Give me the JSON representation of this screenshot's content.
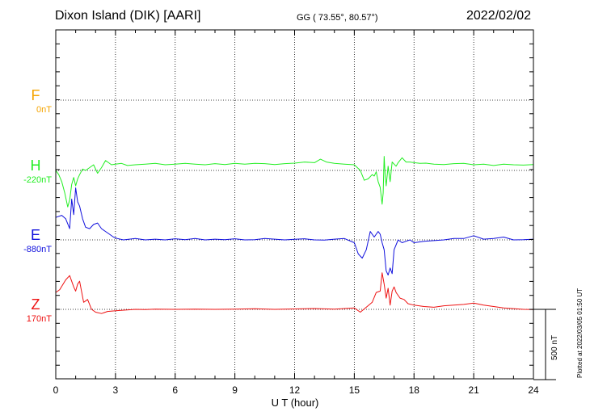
{
  "header": {
    "station": "Dixon Island (DIK)  [AARI]",
    "coordinates": "GG ( 73.55°,  80.57°)",
    "date": "2022/02/02"
  },
  "plotted_note": "Plotted at 2022/03/05 01:50 UT",
  "scale_bar_label": "500 nT",
  "chart_data": {
    "type": "line",
    "xlabel": "U T (hour)",
    "xlim": [
      0,
      24
    ],
    "xticks": [
      0,
      3,
      6,
      9,
      12,
      15,
      18,
      21,
      24
    ],
    "grid": true,
    "scale_bar_nT": 500,
    "series": [
      {
        "name": "F",
        "baseline_label": "0nT",
        "color": "#f5a400",
        "baseline_nT": 0,
        "x": [],
        "y": []
      },
      {
        "name": "H",
        "baseline_label": "-220nT",
        "color": "#22ee22",
        "baseline_nT": -220,
        "x": [
          0,
          0.15,
          0.3,
          0.45,
          0.6,
          0.7,
          0.8,
          0.9,
          1.0,
          1.1,
          1.2,
          1.35,
          1.5,
          1.7,
          1.9,
          2.1,
          2.3,
          2.5,
          2.65,
          2.8,
          3.0,
          3.3,
          3.6,
          4.0,
          4.5,
          5.0,
          5.5,
          6.0,
          6.5,
          7.0,
          7.5,
          8.0,
          8.5,
          9.0,
          9.5,
          10.0,
          10.5,
          11.0,
          11.5,
          12.0,
          12.5,
          13.0,
          13.3,
          13.6,
          14.0,
          14.5,
          15.0,
          15.3,
          15.5,
          15.7,
          15.9,
          16.0,
          16.1,
          16.2,
          16.3,
          16.4,
          16.45,
          16.5,
          16.55,
          16.6,
          16.7,
          16.8,
          16.9,
          17.0,
          17.1,
          17.2,
          17.4,
          17.6,
          17.8,
          18.0,
          18.3,
          18.6,
          19.0,
          19.5,
          20.0,
          20.5,
          21.0,
          21.5,
          22.0,
          22.5,
          23.0,
          23.5,
          24.0
        ],
        "y": [
          -220,
          -250,
          -300,
          -380,
          -480,
          -430,
          -320,
          -270,
          -330,
          -280,
          -250,
          -210,
          -220,
          -200,
          -180,
          -240,
          -200,
          -150,
          -165,
          -180,
          -175,
          -170,
          -185,
          -180,
          -175,
          -170,
          -180,
          -175,
          -170,
          -175,
          -180,
          -172,
          -178,
          -170,
          -175,
          -170,
          -172,
          -178,
          -172,
          -168,
          -160,
          -165,
          -140,
          -160,
          -170,
          -175,
          -180,
          -220,
          -290,
          -280,
          -250,
          -260,
          -230,
          -300,
          -340,
          -460,
          -380,
          -120,
          -250,
          -330,
          -190,
          -300,
          -160,
          -175,
          -190,
          -165,
          -130,
          -160,
          -160,
          -165,
          -170,
          -168,
          -175,
          -178,
          -172,
          -170,
          -180,
          -175,
          -185,
          -175,
          -180,
          -182,
          -178
        ]
      },
      {
        "name": "E",
        "baseline_label": "-880nT",
        "color": "#1010dd",
        "baseline_nT": -880,
        "x": [
          0,
          0.3,
          0.5,
          0.7,
          0.8,
          0.9,
          1.0,
          1.1,
          1.2,
          1.35,
          1.5,
          1.7,
          1.9,
          2.1,
          2.3,
          2.5,
          2.7,
          2.9,
          3.1,
          3.4,
          3.7,
          4.0,
          4.5,
          5.0,
          5.5,
          6.0,
          6.5,
          7.0,
          7.5,
          8.0,
          8.5,
          9.0,
          9.5,
          10.0,
          10.5,
          11.0,
          11.5,
          12.0,
          12.5,
          13.0,
          13.5,
          14.0,
          14.5,
          15.0,
          15.2,
          15.4,
          15.6,
          15.8,
          16.0,
          16.2,
          16.3,
          16.4,
          16.5,
          16.6,
          16.7,
          16.8,
          16.9,
          17.0,
          17.2,
          17.4,
          17.6,
          17.8,
          18.0,
          18.5,
          19.0,
          19.5,
          20.0,
          20.5,
          21.0,
          21.5,
          22.0,
          22.5,
          23.0,
          23.5,
          24.0
        ],
        "y": [
          -720,
          -705,
          -730,
          -800,
          -590,
          -700,
          -510,
          -610,
          -640,
          -730,
          -790,
          -800,
          -770,
          -760,
          -800,
          -820,
          -840,
          -860,
          -870,
          -880,
          -875,
          -870,
          -880,
          -875,
          -880,
          -872,
          -878,
          -870,
          -880,
          -875,
          -878,
          -872,
          -880,
          -878,
          -870,
          -875,
          -880,
          -876,
          -872,
          -880,
          -882,
          -875,
          -870,
          -900,
          -980,
          -1010,
          -950,
          -820,
          -860,
          -820,
          -840,
          -900,
          -950,
          -1100,
          -1130,
          -1080,
          -1120,
          -950,
          -880,
          -900,
          -890,
          -880,
          -900,
          -890,
          -885,
          -880,
          -870,
          -870,
          -850,
          -875,
          -870,
          -860,
          -880,
          -878,
          -875
        ]
      },
      {
        "name": "Z",
        "baseline_label": "170nT",
        "color": "#ee1111",
        "baseline_nT": 170,
        "x": [
          0,
          0.2,
          0.5,
          0.7,
          0.9,
          1.0,
          1.1,
          1.2,
          1.4,
          1.6,
          1.8,
          2.0,
          2.3,
          2.6,
          3.0,
          3.5,
          4.0,
          4.5,
          5.0,
          6.0,
          7.0,
          8.0,
          9.0,
          10.0,
          11.0,
          12.0,
          13.0,
          14.0,
          15.0,
          15.3,
          15.6,
          15.9,
          16.1,
          16.3,
          16.4,
          16.5,
          16.6,
          16.7,
          16.8,
          16.9,
          17.0,
          17.1,
          17.3,
          17.5,
          17.7,
          18.0,
          18.5,
          19.0,
          19.5,
          20.0,
          20.5,
          21.0,
          21.5,
          22.0,
          22.5,
          23.0,
          23.5,
          24.0
        ],
        "y": [
          290,
          310,
          380,
          410,
          330,
          300,
          350,
          370,
          220,
          240,
          170,
          150,
          140,
          155,
          160,
          165,
          170,
          168,
          172,
          170,
          172,
          170,
          172,
          174,
          170,
          173,
          176,
          172,
          180,
          150,
          185,
          220,
          290,
          300,
          430,
          350,
          250,
          320,
          200,
          300,
          330,
          290,
          250,
          240,
          210,
          200,
          190,
          185,
          195,
          200,
          205,
          215,
          200,
          190,
          180,
          175,
          170,
          168
        ]
      }
    ]
  }
}
